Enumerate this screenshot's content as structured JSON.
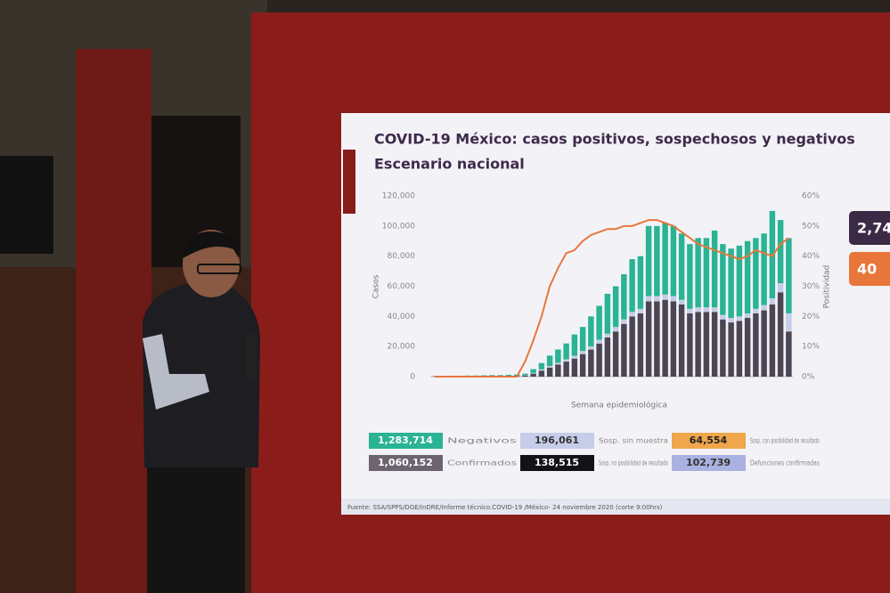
{
  "chart_data": {
    "type": "stacked-bar",
    "title": "COVID-19 México: casos positivos, sospechosos y negativos",
    "subtitle": "Escenario nacional",
    "y_label": "Casos",
    "y2_label": "Positividad",
    "x_label": "Semana epidemiológica",
    "categories": [
      null,
      null,
      null,
      null,
      null,
      null,
      null,
      null,
      null,
      null,
      null,
      null,
      null,
      null,
      null,
      null,
      null,
      null,
      null,
      null,
      null,
      null,
      null,
      null,
      null,
      null,
      null,
      null,
      null,
      null,
      null,
      null,
      null,
      null,
      null,
      null,
      null,
      null,
      null,
      null,
      null,
      null,
      null,
      null
    ],
    "series": [
      {
        "color": "#4c4654",
        "values": [
          50,
          50,
          100,
          100,
          100,
          150,
          150,
          200,
          200,
          300,
          400,
          800,
          2000,
          4000,
          6000,
          8000,
          10000,
          12000,
          15000,
          18000,
          22000,
          26000,
          30000,
          35000,
          40000,
          42000,
          50000,
          50000,
          51000,
          50000,
          48000,
          42000,
          43000,
          43000,
          43000,
          38000,
          36000,
          37000,
          39000,
          42000,
          44000,
          48000,
          56000,
          30000
        ]
      },
      {
        "color": "#c6cde9",
        "values": [
          20,
          20,
          20,
          20,
          20,
          20,
          20,
          20,
          20,
          20,
          20,
          200,
          500,
          800,
          1000,
          1200,
          1500,
          1800,
          2000,
          2000,
          2500,
          2500,
          3000,
          3000,
          3000,
          3000,
          3500,
          3500,
          3500,
          3500,
          3000,
          3000,
          3000,
          3000,
          3000,
          3000,
          3000,
          3000,
          3000,
          3000,
          3500,
          4000,
          6000,
          12000
        ]
      },
      {
        "color": "#2ab394",
        "values": [
          300,
          400,
          500,
          500,
          600,
          600,
          700,
          800,
          800,
          900,
          1000,
          1000,
          2500,
          4200,
          7000,
          8800,
          10500,
          14200,
          16000,
          20000,
          22500,
          26500,
          27000,
          30000,
          35000,
          35000,
          46500,
          46500,
          47500,
          46500,
          44000,
          43000,
          46000,
          46000,
          51000,
          47000,
          46000,
          47000,
          48000,
          47000,
          47500,
          58000,
          42000,
          50000
        ]
      },
      {
        "color": "#e8763a",
        "axis": "y2",
        "line": true,
        "values": [
          0,
          0,
          0,
          0,
          0,
          0,
          0,
          0,
          0,
          0,
          0,
          5,
          12,
          20,
          30,
          36,
          41,
          42,
          45,
          47,
          48,
          49,
          49,
          50,
          50,
          51,
          52,
          52,
          51,
          50,
          48,
          46,
          44,
          43,
          42,
          41,
          40,
          39,
          40,
          42,
          41,
          40,
          44,
          46
        ]
      }
    ],
    "ylim": [
      0,
      120000
    ],
    "yticks": [
      0,
      {
        "value": 20000,
        "label": "20,000"
      },
      {
        "value": 40000,
        "label": "40,000"
      },
      {
        "value": 60000,
        "label": "60,000"
      },
      {
        "value": 80000,
        "label": "80,000"
      },
      {
        "value": 100000,
        "label": "100,000"
      },
      {
        "value": 120000,
        "label": "120,000"
      }
    ],
    "y2lim": [
      0,
      60
    ],
    "y2ticks": [
      {
        "value": 0,
        "label": "0%"
      },
      {
        "value": 10,
        "label": "10%"
      },
      {
        "value": 20,
        "label": "20%"
      },
      {
        "value": 30,
        "label": "30%"
      },
      {
        "value": 40,
        "label": "40%"
      },
      {
        "value": 50,
        "label": "50%"
      },
      {
        "value": 60,
        "label": "60%"
      }
    ],
    "summary": [
      {
        "value": "1,283,714",
        "label": "Negativos",
        "color": "#2ab394"
      },
      {
        "value": "196,061",
        "label": "Sosp. sin muestra",
        "color": "#c6cde9"
      },
      {
        "value": "64,554",
        "label": "Sosp. con posibilidad de resultado",
        "color": "#f0a64a"
      },
      {
        "value": "1,060,152",
        "label": "Confirmados",
        "color": "#6d6470"
      },
      {
        "value": "138,515",
        "label": "Sosp. no posibilidad de resultado",
        "color": "#141118"
      },
      {
        "value": "102,739",
        "label": "Defunciones confirmadas",
        "color": "#a9b2e0"
      }
    ],
    "side_boxes": [
      {
        "text": "2,74",
        "color": "#3a2a45"
      },
      {
        "text": "40",
        "color": "#e8763a"
      }
    ],
    "source": "Fuente: SSA/SPPS/DGE/InDRE/Informe técnico.COVID-19 /México- 24 noviembre 2020 (corte 9:00hrs)"
  }
}
